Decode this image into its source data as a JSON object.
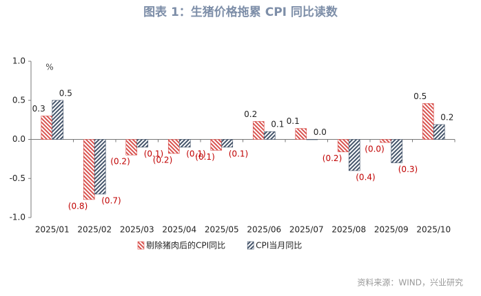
{
  "chart_data": {
    "type": "bar",
    "title": "图表 1：生猪价格拖累 CPI 同比读数",
    "y_unit": "%",
    "source": "资料来源：WIND，兴业研究",
    "categories": [
      "2025/01",
      "2025/02",
      "2025/03",
      "2025/04",
      "2025/05",
      "2025/06",
      "2025/07",
      "2025/08",
      "2025/09",
      "2025/10"
    ],
    "series": [
      {
        "name": "剔除猪肉后的CPI同比",
        "color": "#d9534f",
        "values": [
          0.3,
          -0.77,
          -0.2,
          -0.18,
          -0.14,
          0.23,
          0.14,
          -0.16,
          -0.04,
          0.46
        ],
        "value_labels": [
          "0.3",
          "(0.8)",
          "(0.2)",
          "(0.2)",
          "(0.1)",
          "0.2",
          "0.1",
          "(0.2)",
          "(0.0)",
          "0.5"
        ]
      },
      {
        "name": "CPI当月同比",
        "color": "#44546a",
        "values": [
          0.5,
          -0.7,
          -0.1,
          -0.1,
          -0.1,
          0.1,
          0,
          -0.4,
          -0.3,
          0.19
        ],
        "value_labels": [
          "0.5",
          "(0.7)",
          "(0.1)",
          "(0.1)",
          "(0.1)",
          "0.1",
          "0.0",
          "(0.4)",
          "(0.3)",
          "0.2"
        ]
      }
    ],
    "ylim": [
      -1,
      1
    ],
    "yticks": [
      {
        "value": -1,
        "label": "-1.0"
      },
      {
        "value": -0.5,
        "label": "-0.5"
      },
      {
        "value": 0,
        "label": "0.0"
      },
      {
        "value": 0.5,
        "label": "0.5"
      },
      {
        "value": 1,
        "label": "1.0"
      }
    ],
    "negative_label_color": "#c00000"
  }
}
